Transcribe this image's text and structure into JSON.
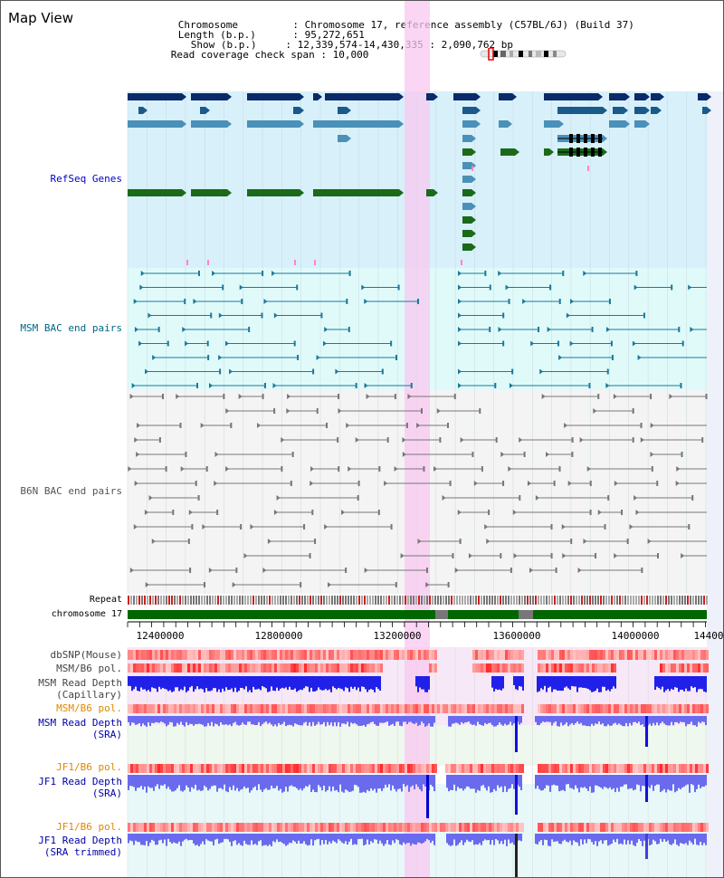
{
  "title": "Map View",
  "info": {
    "chromosome_label": "Chromosome",
    "chromosome_value": "Chromosome 17, reference assembly (C57BL/6J) (Build 37)",
    "length_label": "Length (b.p.)",
    "length_value": "95,272,651",
    "show_label": "Show (b.p.)",
    "show_value": "12,339,574-14,430,335 : 2,090,762 bp",
    "span_label": "Read coverage check span",
    "span_value": "10,000"
  },
  "tracks": {
    "refseq": {
      "label": "RefSeq Genes",
      "color": "#0000cc"
    },
    "msm_bac": {
      "label": "MSM BAC end pairs",
      "color": "#006688"
    },
    "b6n_bac": {
      "label": "B6N BAC end pairs",
      "color": "#555555"
    },
    "repeat": {
      "label": "Repeat"
    },
    "chromosome": {
      "label": "chromosome 17"
    },
    "dbsnp": {
      "label": "dbSNP(Mouse)"
    },
    "msm_b6_pol_1": {
      "label": "MSM/B6 pol."
    },
    "msm_depth_cap": {
      "label1": "MSM Read Depth",
      "label2": "(Capillary)"
    },
    "msm_b6_pol_2": {
      "label": "MSM/B6 pol.",
      "color": "#e08800"
    },
    "msm_depth_sra": {
      "label1": "MSM Read Depth",
      "label2": "(SRA)"
    },
    "jf1_b6_pol_1": {
      "label": "JF1/B6 pol.",
      "color": "#e08800"
    },
    "jf1_depth_sra": {
      "label1": "JF1 Read Depth",
      "label2": "(SRA)"
    },
    "jf1_b6_pol_2": {
      "label": "JF1/B6 pol.",
      "color": "#e08800"
    },
    "jf1_depth_trim": {
      "label1": "JF1 Read Depth",
      "label2": "(SRA trimmed)"
    }
  },
  "axis": {
    "ticks": [
      "12400000",
      "12800000",
      "13200000",
      "13600000",
      "14000000",
      "14400"
    ]
  },
  "colors": {
    "highlight": "#f8c8f0",
    "refseq_bg": "#d8f0fa",
    "msm_bg": "#e0fafa",
    "b6n_bg": "#f4f4f4",
    "chromosome": "#006600"
  }
}
